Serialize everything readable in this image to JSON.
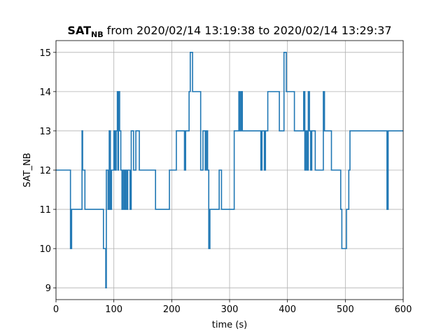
{
  "chart_data": {
    "type": "line",
    "title": {
      "main": "SAT",
      "sub": "NB",
      "rest": " from 2020/02/14 13:19:38 to 2020/02/14 13:29:37"
    },
    "xlabel": "time (s)",
    "ylabel": "SAT_NB",
    "xlim": [
      0,
      600
    ],
    "ylim": [
      8.7,
      15.3
    ],
    "xticks": [
      0,
      100,
      200,
      300,
      400,
      500,
      600
    ],
    "yticks": [
      9,
      10,
      11,
      12,
      13,
      14,
      15
    ],
    "grid": true,
    "step": "post",
    "series": [
      {
        "color": "#1f77b4",
        "x": [
          0,
          25,
          27,
          45,
          46,
          50,
          82,
          86,
          87,
          90,
          92,
          94,
          96,
          100,
          102,
          104,
          106,
          107,
          108,
          110,
          112,
          114,
          116,
          118,
          120,
          122,
          124,
          128,
          130,
          134,
          138,
          144,
          172,
          196,
          208,
          222,
          224,
          230,
          232,
          236,
          250,
          254,
          258,
          260,
          262,
          264,
          266,
          268,
          282,
          286,
          308,
          316,
          318,
          320,
          322,
          324,
          354,
          356,
          360,
          362,
          366,
          386,
          394,
          398,
          412,
          428,
          430,
          432,
          434,
          436,
          438,
          440,
          442,
          448,
          462,
          464,
          476,
          492,
          494,
          502,
          506,
          508,
          572,
          574,
          600
        ],
        "values": [
          12,
          10,
          11,
          13,
          12,
          11,
          10,
          9,
          12,
          11,
          13,
          11,
          12,
          13,
          12,
          13,
          14,
          12,
          14,
          13,
          12,
          11,
          12,
          11,
          12,
          11,
          12,
          11,
          13,
          12,
          13,
          12,
          11,
          12,
          13,
          12,
          13,
          14,
          15,
          14,
          12,
          13,
          12,
          13,
          12,
          10,
          11,
          11,
          12,
          11,
          13,
          14,
          13,
          14,
          13,
          13,
          12,
          13,
          12,
          13,
          14,
          13,
          15,
          14,
          13,
          14,
          12,
          13,
          12,
          14,
          13,
          12,
          13,
          12,
          14,
          13,
          12,
          11,
          10,
          11,
          12,
          13,
          11,
          13,
          13
        ]
      }
    ]
  }
}
